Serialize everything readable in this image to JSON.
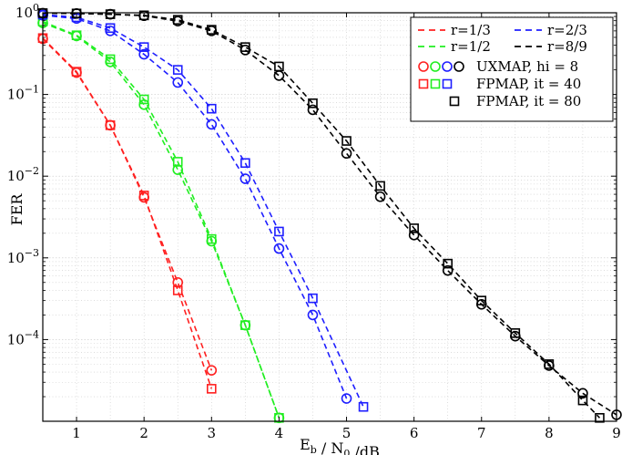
{
  "chart_data": {
    "type": "line",
    "xlabel": "E_b / N_0 /dB",
    "ylabel": "FER",
    "xlim": [
      0.5,
      9
    ],
    "ylim": [
      1e-05,
      1
    ],
    "yscale": "log",
    "grid": true,
    "legend_position": "top-right",
    "xticks": [
      1,
      2,
      3,
      4,
      5,
      6,
      7,
      8,
      9
    ],
    "yticks": [
      {
        "value": 1,
        "mantissa": "10",
        "exp": "0"
      },
      {
        "value": 0.1,
        "mantissa": "10",
        "exp": "−1"
      },
      {
        "value": 0.01,
        "mantissa": "10",
        "exp": "−2"
      },
      {
        "value": 0.001,
        "mantissa": "10",
        "exp": "−3"
      },
      {
        "value": 0.0001,
        "mantissa": "10",
        "exp": "−4"
      }
    ],
    "legend": {
      "lines": [
        {
          "label": "r=1/3",
          "color": "#ff2020"
        },
        {
          "label": "r=2/3",
          "color": "#1e1eff"
        },
        {
          "label": "r=1/2",
          "color": "#20ee20"
        },
        {
          "label": "r=8/9",
          "color": "#000000"
        }
      ],
      "markers": [
        {
          "label": "UXMAP, hi = 8",
          "shape": "circle",
          "colors": [
            "#ff2020",
            "#20ee20",
            "#1e1eff",
            "#000000"
          ]
        },
        {
          "label": "FPMAP, it = 40",
          "shape": "square",
          "colors": [
            "#ff2020",
            "#20ee20",
            "#1e1eff"
          ]
        },
        {
          "label": "FPMAP, it = 80",
          "shape": "square",
          "colors": [
            "#000000"
          ]
        }
      ]
    },
    "series": [
      {
        "rate": "1/3",
        "decoder": "UXMAP",
        "color": "#ff2020",
        "marker": "circle",
        "x": [
          0.5,
          1,
          1.5,
          2,
          2.5,
          3
        ],
        "y": [
          0.48,
          0.185,
          0.042,
          0.0055,
          0.0005,
          4.2e-05
        ]
      },
      {
        "rate": "1/3",
        "decoder": "FPMAP",
        "color": "#ff2020",
        "marker": "square",
        "x": [
          0.5,
          1,
          1.5,
          2,
          2.5,
          3
        ],
        "y": [
          0.49,
          0.19,
          0.042,
          0.0058,
          0.0004,
          2.5e-05
        ]
      },
      {
        "rate": "1/2",
        "decoder": "UXMAP",
        "color": "#20ee20",
        "marker": "circle",
        "x": [
          0.5,
          1,
          1.5,
          2,
          2.5,
          3,
          3.5,
          4
        ],
        "y": [
          0.75,
          0.52,
          0.25,
          0.075,
          0.012,
          0.0016,
          0.00015,
          1.1e-05
        ]
      },
      {
        "rate": "1/2",
        "decoder": "FPMAP",
        "color": "#20ee20",
        "marker": "square",
        "x": [
          0.5,
          1,
          1.5,
          2,
          2.5,
          3,
          3.5,
          4
        ],
        "y": [
          0.78,
          0.53,
          0.27,
          0.087,
          0.015,
          0.0017,
          0.00015,
          1.1e-05
        ]
      },
      {
        "rate": "2/3",
        "decoder": "UXMAP",
        "color": "#1e1eff",
        "marker": "circle",
        "x": [
          0.5,
          1,
          1.5,
          2,
          2.5,
          3,
          3.5,
          4,
          4.5,
          5
        ],
        "y": [
          0.93,
          0.85,
          0.6,
          0.31,
          0.14,
          0.043,
          0.0093,
          0.0013,
          0.0002,
          1.9e-05
        ]
      },
      {
        "rate": "2/3",
        "decoder": "FPMAP",
        "color": "#1e1eff",
        "marker": "square",
        "x": [
          0.5,
          1,
          1.5,
          2,
          2.5,
          3,
          3.5,
          4,
          4.5,
          5.25
        ],
        "y": [
          0.95,
          0.88,
          0.65,
          0.38,
          0.2,
          0.067,
          0.0145,
          0.0021,
          0.00032,
          1.5e-05
        ]
      },
      {
        "rate": "8/9",
        "decoder": "UXMAP",
        "color": "#000000",
        "marker": "circle",
        "x": [
          0.5,
          1,
          1.5,
          2,
          2.5,
          3,
          3.5,
          4,
          4.5,
          5,
          5.5,
          6,
          6.5,
          7,
          7.5,
          8,
          8.5,
          9
        ],
        "y": [
          0.99,
          0.98,
          0.96,
          0.92,
          0.79,
          0.6,
          0.35,
          0.17,
          0.065,
          0.019,
          0.0056,
          0.0019,
          0.0007,
          0.00027,
          0.00011,
          4.8e-05,
          2.2e-05,
          1.2e-05
        ]
      },
      {
        "rate": "8/9",
        "decoder": "FPMAP",
        "color": "#000000",
        "marker": "square",
        "x": [
          0.5,
          1,
          1.5,
          2,
          2.5,
          3,
          3.5,
          4,
          4.5,
          5,
          5.5,
          6,
          6.5,
          7,
          7.5,
          8,
          8.5,
          8.75
        ],
        "y": [
          0.99,
          0.98,
          0.96,
          0.93,
          0.82,
          0.62,
          0.38,
          0.22,
          0.078,
          0.027,
          0.0076,
          0.0023,
          0.00085,
          0.0003,
          0.00012,
          5e-05,
          1.8e-05,
          1.1e-05
        ]
      }
    ]
  }
}
